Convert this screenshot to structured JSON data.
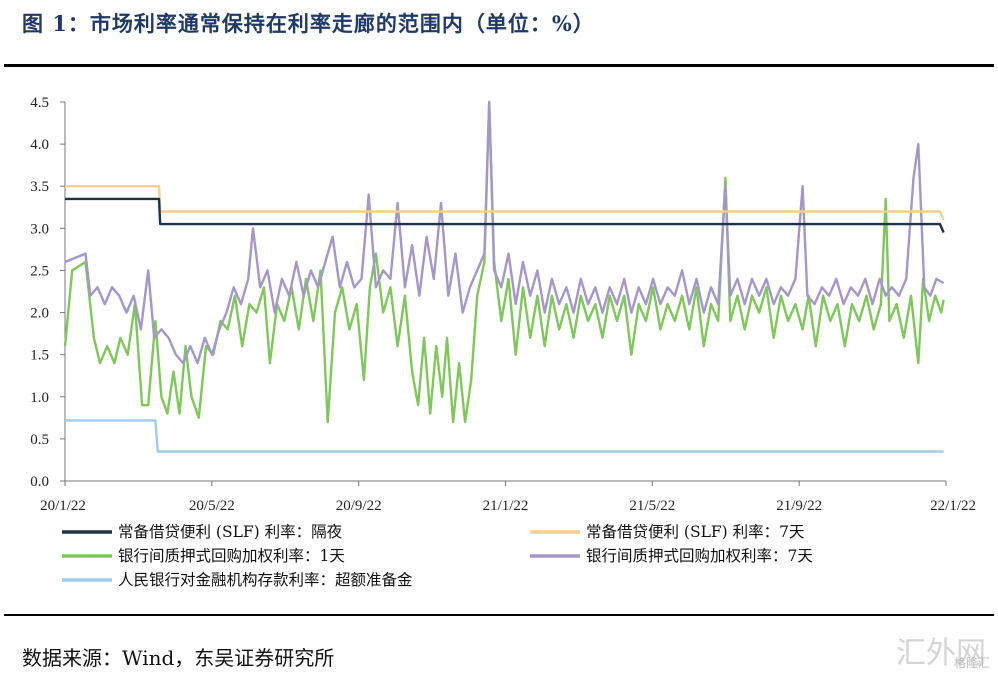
{
  "title": "图 1：市场利率通常保持在利率走廊的范围内（单位：%）",
  "source": "数据来源：Wind，东吴证券研究所",
  "watermark": "汇外网",
  "watermark_sub": "格隆汇",
  "chart_data": {
    "type": "line",
    "title": "",
    "xlabel": "",
    "ylabel": "",
    "ylim": [
      0,
      4.5
    ],
    "yticks": [
      "0.0",
      "0.5",
      "1.0",
      "1.5",
      "2.0",
      "2.5",
      "3.0",
      "3.5",
      "4.0",
      "4.5"
    ],
    "x_tick_labels": [
      "20/1/22",
      "20/5/22",
      "20/9/22",
      "21/1/22",
      "21/5/22",
      "21/9/22",
      "22/1/22"
    ],
    "x_range": [
      "2020-01-22",
      "2022-01-22"
    ],
    "grid": false,
    "legend_position": "bottom",
    "series": [
      {
        "name": "常备借贷便利 (SLF) 利率：隔夜",
        "color": "#1f3248",
        "points": [
          [
            "2020-01-22",
            3.35
          ],
          [
            "2020-04-09",
            3.35
          ],
          [
            "2020-04-10",
            3.05
          ],
          [
            "2022-01-17",
            3.05
          ],
          [
            "2022-01-20",
            2.95
          ]
        ]
      },
      {
        "name": "常备借贷便利 (SLF) 利率：7天",
        "color": "#f8cf8c",
        "points": [
          [
            "2020-01-22",
            3.5
          ],
          [
            "2020-04-09",
            3.5
          ],
          [
            "2020-04-10",
            3.2
          ],
          [
            "2022-01-17",
            3.2
          ],
          [
            "2022-01-20",
            3.1
          ]
        ]
      },
      {
        "name": "银行间质押式回购加权利率：1天",
        "color": "#7fc75a",
        "points": [
          [
            "2020-01-22",
            1.6
          ],
          [
            "2020-01-28",
            2.5
          ],
          [
            "2020-02-08",
            2.6
          ],
          [
            "2020-02-15",
            1.7
          ],
          [
            "2020-02-20",
            1.4
          ],
          [
            "2020-02-26",
            1.6
          ],
          [
            "2020-03-03",
            1.4
          ],
          [
            "2020-03-08",
            1.7
          ],
          [
            "2020-03-14",
            1.5
          ],
          [
            "2020-03-20",
            2.1
          ],
          [
            "2020-03-26",
            0.9
          ],
          [
            "2020-03-31",
            0.9
          ],
          [
            "2020-04-06",
            1.9
          ],
          [
            "2020-04-11",
            1.0
          ],
          [
            "2020-04-16",
            0.8
          ],
          [
            "2020-04-21",
            1.3
          ],
          [
            "2020-04-26",
            0.8
          ],
          [
            "2020-05-01",
            1.6
          ],
          [
            "2020-05-06",
            1.0
          ],
          [
            "2020-05-12",
            0.75
          ],
          [
            "2020-05-18",
            1.6
          ],
          [
            "2020-05-24",
            1.5
          ],
          [
            "2020-05-30",
            1.9
          ],
          [
            "2020-06-05",
            1.8
          ],
          [
            "2020-06-11",
            2.2
          ],
          [
            "2020-06-17",
            1.6
          ],
          [
            "2020-06-23",
            2.1
          ],
          [
            "2020-06-29",
            2.0
          ],
          [
            "2020-07-05",
            2.3
          ],
          [
            "2020-07-10",
            1.4
          ],
          [
            "2020-07-16",
            2.1
          ],
          [
            "2020-07-22",
            1.9
          ],
          [
            "2020-07-28",
            2.3
          ],
          [
            "2020-08-03",
            1.8
          ],
          [
            "2020-08-09",
            2.4
          ],
          [
            "2020-08-15",
            1.9
          ],
          [
            "2020-08-21",
            2.5
          ],
          [
            "2020-08-27",
            0.7
          ],
          [
            "2020-09-02",
            2.0
          ],
          [
            "2020-09-08",
            2.3
          ],
          [
            "2020-09-14",
            1.8
          ],
          [
            "2020-09-20",
            2.1
          ],
          [
            "2020-09-26",
            1.2
          ],
          [
            "2020-10-01",
            2.3
          ],
          [
            "2020-10-06",
            2.7
          ],
          [
            "2020-10-12",
            2.0
          ],
          [
            "2020-10-18",
            2.3
          ],
          [
            "2020-10-24",
            1.6
          ],
          [
            "2020-10-30",
            2.2
          ],
          [
            "2020-11-05",
            1.3
          ],
          [
            "2020-11-10",
            0.9
          ],
          [
            "2020-11-15",
            1.7
          ],
          [
            "2020-11-20",
            0.8
          ],
          [
            "2020-11-25",
            1.6
          ],
          [
            "2020-11-30",
            1.0
          ],
          [
            "2020-12-04",
            1.7
          ],
          [
            "2020-12-09",
            0.7
          ],
          [
            "2020-12-14",
            1.4
          ],
          [
            "2020-12-19",
            0.7
          ],
          [
            "2020-12-24",
            1.2
          ],
          [
            "2020-12-29",
            2.2
          ],
          [
            "2021-01-04",
            2.6
          ],
          [
            "2021-01-08",
            4.5
          ],
          [
            "2021-01-12",
            2.6
          ],
          [
            "2021-01-18",
            1.9
          ],
          [
            "2021-01-24",
            2.4
          ],
          [
            "2021-01-30",
            1.5
          ],
          [
            "2021-02-05",
            2.3
          ],
          [
            "2021-02-11",
            1.7
          ],
          [
            "2021-02-17",
            2.2
          ],
          [
            "2021-02-23",
            1.6
          ],
          [
            "2021-03-01",
            2.2
          ],
          [
            "2021-03-07",
            1.8
          ],
          [
            "2021-03-13",
            2.1
          ],
          [
            "2021-03-19",
            1.7
          ],
          [
            "2021-03-25",
            2.2
          ],
          [
            "2021-03-31",
            1.9
          ],
          [
            "2021-04-06",
            2.1
          ],
          [
            "2021-04-12",
            1.7
          ],
          [
            "2021-04-18",
            2.2
          ],
          [
            "2021-04-24",
            1.9
          ],
          [
            "2021-04-30",
            2.2
          ],
          [
            "2021-05-06",
            1.5
          ],
          [
            "2021-05-12",
            2.1
          ],
          [
            "2021-05-18",
            1.9
          ],
          [
            "2021-05-24",
            2.3
          ],
          [
            "2021-05-30",
            1.8
          ],
          [
            "2021-06-05",
            2.1
          ],
          [
            "2021-06-11",
            1.9
          ],
          [
            "2021-06-17",
            2.2
          ],
          [
            "2021-06-23",
            1.8
          ],
          [
            "2021-06-29",
            2.3
          ],
          [
            "2021-07-05",
            1.6
          ],
          [
            "2021-07-11",
            2.1
          ],
          [
            "2021-07-17",
            1.9
          ],
          [
            "2021-07-23",
            3.6
          ],
          [
            "2021-07-27",
            1.9
          ],
          [
            "2021-08-02",
            2.2
          ],
          [
            "2021-08-08",
            1.8
          ],
          [
            "2021-08-14",
            2.2
          ],
          [
            "2021-08-20",
            2.0
          ],
          [
            "2021-08-26",
            2.3
          ],
          [
            "2021-09-01",
            1.7
          ],
          [
            "2021-09-07",
            2.2
          ],
          [
            "2021-09-13",
            1.9
          ],
          [
            "2021-09-19",
            2.1
          ],
          [
            "2021-09-25",
            1.8
          ],
          [
            "2021-09-30",
            2.2
          ],
          [
            "2021-10-06",
            1.6
          ],
          [
            "2021-10-12",
            2.2
          ],
          [
            "2021-10-18",
            1.9
          ],
          [
            "2021-10-24",
            2.1
          ],
          [
            "2021-10-30",
            1.6
          ],
          [
            "2021-11-05",
            2.1
          ],
          [
            "2021-11-11",
            1.9
          ],
          [
            "2021-11-17",
            2.2
          ],
          [
            "2021-11-23",
            1.8
          ],
          [
            "2021-11-29",
            2.1
          ],
          [
            "2021-12-03",
            3.35
          ],
          [
            "2021-12-06",
            1.9
          ],
          [
            "2021-12-12",
            2.1
          ],
          [
            "2021-12-18",
            1.7
          ],
          [
            "2021-12-24",
            2.2
          ],
          [
            "2021-12-30",
            1.4
          ],
          [
            "2022-01-03",
            2.4
          ],
          [
            "2022-01-08",
            1.9
          ],
          [
            "2022-01-13",
            2.2
          ],
          [
            "2022-01-18",
            2.0
          ],
          [
            "2022-01-20",
            2.15
          ]
        ]
      },
      {
        "name": "银行间质押式回购加权利率：7天",
        "color": "#a497c8",
        "points": [
          [
            "2020-01-22",
            2.6
          ],
          [
            "2020-02-08",
            2.7
          ],
          [
            "2020-02-12",
            2.2
          ],
          [
            "2020-02-18",
            2.3
          ],
          [
            "2020-02-24",
            2.1
          ],
          [
            "2020-03-01",
            2.3
          ],
          [
            "2020-03-07",
            2.2
          ],
          [
            "2020-03-13",
            2.0
          ],
          [
            "2020-03-19",
            2.2
          ],
          [
            "2020-03-25",
            1.8
          ],
          [
            "2020-03-31",
            2.5
          ],
          [
            "2020-04-05",
            1.7
          ],
          [
            "2020-04-11",
            1.8
          ],
          [
            "2020-04-17",
            1.7
          ],
          [
            "2020-04-23",
            1.5
          ],
          [
            "2020-04-29",
            1.4
          ],
          [
            "2020-05-05",
            1.6
          ],
          [
            "2020-05-11",
            1.4
          ],
          [
            "2020-05-17",
            1.7
          ],
          [
            "2020-05-23",
            1.5
          ],
          [
            "2020-05-29",
            1.8
          ],
          [
            "2020-06-04",
            2.0
          ],
          [
            "2020-06-10",
            2.3
          ],
          [
            "2020-06-16",
            2.1
          ],
          [
            "2020-06-22",
            2.4
          ],
          [
            "2020-06-26",
            3.0
          ],
          [
            "2020-07-02",
            2.3
          ],
          [
            "2020-07-08",
            2.5
          ],
          [
            "2020-07-14",
            2.0
          ],
          [
            "2020-07-20",
            2.4
          ],
          [
            "2020-07-26",
            2.2
          ],
          [
            "2020-08-01",
            2.6
          ],
          [
            "2020-08-07",
            2.2
          ],
          [
            "2020-08-13",
            2.5
          ],
          [
            "2020-08-19",
            2.3
          ],
          [
            "2020-08-25",
            2.6
          ],
          [
            "2020-08-31",
            2.9
          ],
          [
            "2020-09-06",
            2.3
          ],
          [
            "2020-09-12",
            2.6
          ],
          [
            "2020-09-18",
            2.3
          ],
          [
            "2020-09-24",
            2.4
          ],
          [
            "2020-09-30",
            3.4
          ],
          [
            "2020-10-06",
            2.3
          ],
          [
            "2020-10-12",
            2.5
          ],
          [
            "2020-10-18",
            2.4
          ],
          [
            "2020-10-24",
            3.3
          ],
          [
            "2020-10-30",
            2.3
          ],
          [
            "2020-11-05",
            2.8
          ],
          [
            "2020-11-11",
            2.2
          ],
          [
            "2020-11-17",
            2.9
          ],
          [
            "2020-11-23",
            2.4
          ],
          [
            "2020-11-29",
            3.3
          ],
          [
            "2020-12-05",
            2.2
          ],
          [
            "2020-12-11",
            2.7
          ],
          [
            "2020-12-17",
            2.0
          ],
          [
            "2020-12-23",
            2.3
          ],
          [
            "2020-12-29",
            2.5
          ],
          [
            "2021-01-04",
            2.7
          ],
          [
            "2021-01-08",
            4.5
          ],
          [
            "2021-01-12",
            2.5
          ],
          [
            "2021-01-18",
            2.3
          ],
          [
            "2021-01-24",
            2.7
          ],
          [
            "2021-01-30",
            2.1
          ],
          [
            "2021-02-05",
            2.6
          ],
          [
            "2021-02-11",
            2.2
          ],
          [
            "2021-02-17",
            2.5
          ],
          [
            "2021-02-23",
            2.0
          ],
          [
            "2021-03-01",
            2.4
          ],
          [
            "2021-03-07",
            2.1
          ],
          [
            "2021-03-13",
            2.3
          ],
          [
            "2021-03-19",
            2.0
          ],
          [
            "2021-03-25",
            2.4
          ],
          [
            "2021-03-31",
            2.1
          ],
          [
            "2021-04-06",
            2.3
          ],
          [
            "2021-04-12",
            2.0
          ],
          [
            "2021-04-18",
            2.3
          ],
          [
            "2021-04-24",
            2.1
          ],
          [
            "2021-04-30",
            2.4
          ],
          [
            "2021-05-06",
            2.0
          ],
          [
            "2021-05-12",
            2.3
          ],
          [
            "2021-05-18",
            2.1
          ],
          [
            "2021-05-24",
            2.4
          ],
          [
            "2021-05-30",
            2.1
          ],
          [
            "2021-06-05",
            2.3
          ],
          [
            "2021-06-11",
            2.2
          ],
          [
            "2021-06-17",
            2.5
          ],
          [
            "2021-06-23",
            2.1
          ],
          [
            "2021-06-29",
            2.4
          ],
          [
            "2021-07-05",
            2.0
          ],
          [
            "2021-07-11",
            2.3
          ],
          [
            "2021-07-17",
            2.1
          ],
          [
            "2021-07-23",
            3.5
          ],
          [
            "2021-07-27",
            2.2
          ],
          [
            "2021-08-02",
            2.4
          ],
          [
            "2021-08-08",
            2.1
          ],
          [
            "2021-08-14",
            2.4
          ],
          [
            "2021-08-20",
            2.2
          ],
          [
            "2021-08-26",
            2.4
          ],
          [
            "2021-09-01",
            2.1
          ],
          [
            "2021-09-07",
            2.3
          ],
          [
            "2021-09-13",
            2.2
          ],
          [
            "2021-09-19",
            2.4
          ],
          [
            "2021-09-25",
            3.5
          ],
          [
            "2021-09-29",
            2.2
          ],
          [
            "2021-10-05",
            2.1
          ],
          [
            "2021-10-11",
            2.3
          ],
          [
            "2021-10-17",
            2.2
          ],
          [
            "2021-10-23",
            2.4
          ],
          [
            "2021-10-29",
            2.1
          ],
          [
            "2021-11-04",
            2.3
          ],
          [
            "2021-11-10",
            2.2
          ],
          [
            "2021-11-16",
            2.4
          ],
          [
            "2021-11-22",
            2.1
          ],
          [
            "2021-11-28",
            2.4
          ],
          [
            "2021-12-03",
            2.2
          ],
          [
            "2021-12-08",
            2.3
          ],
          [
            "2021-12-14",
            2.2
          ],
          [
            "2021-12-20",
            2.4
          ],
          [
            "2021-12-26",
            3.6
          ],
          [
            "2021-12-30",
            4.0
          ],
          [
            "2022-01-04",
            2.3
          ],
          [
            "2022-01-09",
            2.2
          ],
          [
            "2022-01-14",
            2.4
          ],
          [
            "2022-01-20",
            2.35
          ]
        ]
      },
      {
        "name": "人民银行对金融机构存款利率：超额准备金",
        "color": "#9fcbec",
        "points": [
          [
            "2020-01-22",
            0.72
          ],
          [
            "2020-04-06",
            0.72
          ],
          [
            "2020-04-08",
            0.35
          ],
          [
            "2022-01-20",
            0.35
          ]
        ]
      }
    ]
  }
}
